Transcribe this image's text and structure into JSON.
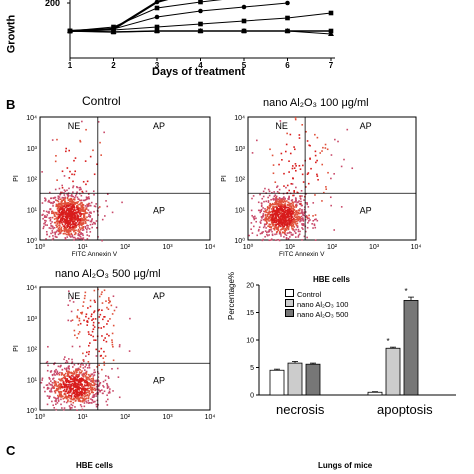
{
  "panel_labels": {
    "b": "B",
    "c": "C"
  },
  "growth_chart": {
    "ylabel": "Growth",
    "ytick": "200",
    "xlabel": "Days of treatment",
    "xticks": [
      "1",
      "2",
      "3",
      "4",
      "5",
      "6",
      "7"
    ]
  },
  "flow_plots": [
    {
      "title": "Control",
      "q_ul": "NE",
      "q_ur": "AP",
      "q_lr": "AP",
      "ylabel": "PI",
      "xlabel": "FITC Annexin V",
      "yticks": [
        "10⁰",
        "10¹",
        "10²",
        "10³",
        "10⁴"
      ],
      "xticks": [
        "10⁰",
        "10¹",
        "10²",
        "10³",
        "10⁴"
      ]
    },
    {
      "title": "nano Al₂O₃ 100 μg/ml",
      "q_ul": "NE",
      "q_ur": "AP",
      "q_lr": "AP",
      "ylabel": "PI",
      "xlabel": "FITC Annexin V",
      "yticks": [
        "10⁰",
        "10¹",
        "10²",
        "10³",
        "10⁴"
      ],
      "xticks": [
        "10⁰",
        "10¹",
        "10²",
        "10³",
        "10⁴"
      ]
    },
    {
      "title": "nano Al₂O₃ 500 μg/ml",
      "q_ul": "NE",
      "q_ur": "AP",
      "q_lr": "AP",
      "ylabel": "PI",
      "xlabel": "FITC Annexin V",
      "yticks": [
        "10⁰",
        "10¹",
        "10²",
        "10³",
        "10⁴"
      ],
      "xticks": [
        "10⁰",
        "10¹",
        "10²",
        "10³",
        "10⁴"
      ]
    }
  ],
  "bar_chart": {
    "type": "bar",
    "title": "HBE cells",
    "ylabel": "Percentage%",
    "ylim": [
      0,
      20
    ],
    "yticks": [
      "0",
      "5",
      "10",
      "15",
      "20"
    ],
    "categories": [
      "necrosis",
      "apoptosis"
    ],
    "series": [
      {
        "name": "Control",
        "values": [
          4.5,
          0.5
        ],
        "errors": [
          0.2,
          0.1
        ],
        "color": "#ffffff"
      },
      {
        "name": "nano Al₂O₃ 100",
        "values": [
          5.8,
          8.5
        ],
        "errors": [
          0.3,
          0.2
        ],
        "color": "#cccccc"
      },
      {
        "name": "nano Al₂O₃ 500",
        "values": [
          5.6,
          17.2
        ],
        "errors": [
          0.2,
          0.6
        ],
        "color": "#777777"
      }
    ],
    "significance_mark": "*"
  },
  "panel_c": {
    "left_title": "HBE cells",
    "right_title": "Lungs of mice"
  }
}
